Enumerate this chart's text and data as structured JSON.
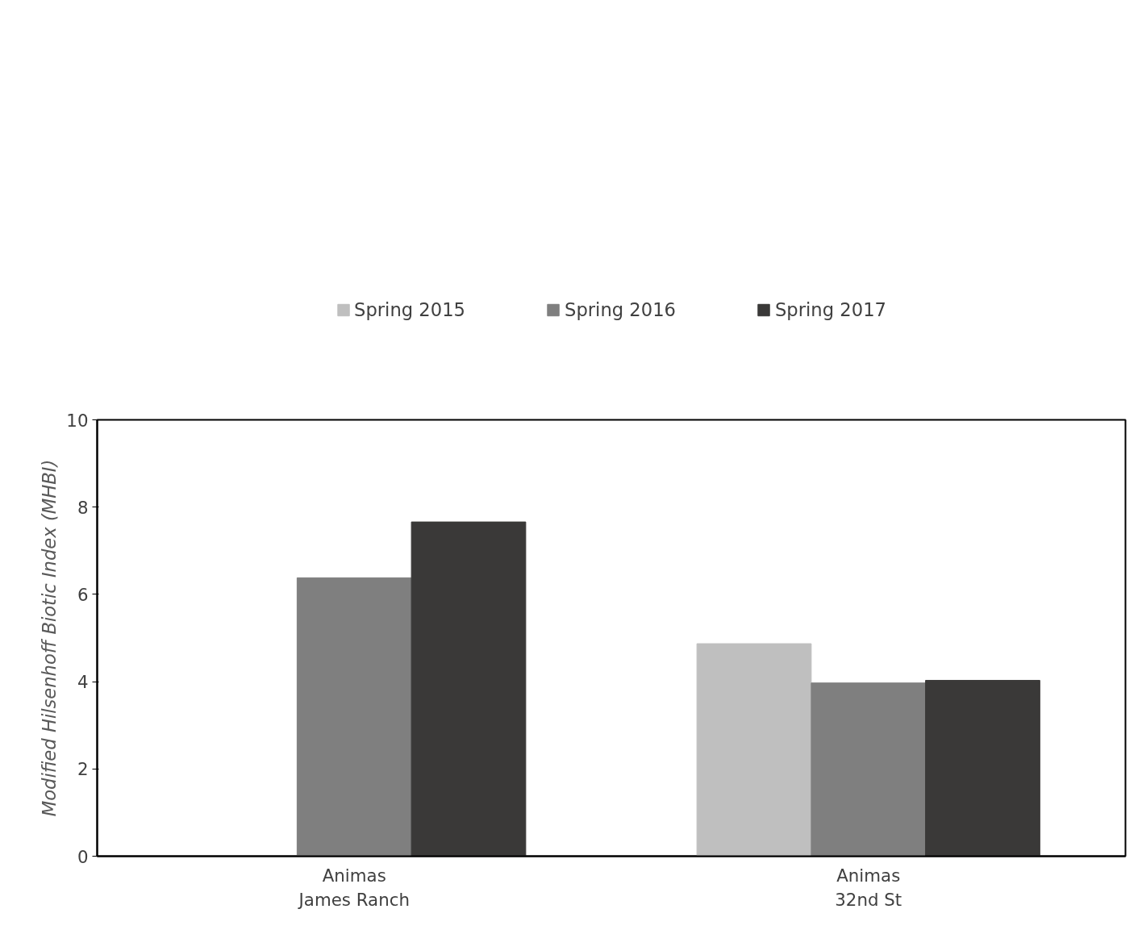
{
  "chart_data": {
    "type": "bar",
    "categories": [
      "Animas\nJames Ranch",
      "Animas\n32nd St"
    ],
    "ylabel": "Modified Hilsenhoff Biotic Index (MHBI)",
    "series": [
      {
        "name": "Spring 2015",
        "color": "#bfbfbf",
        "values": [
          null,
          4.87
        ]
      },
      {
        "name": "Spring 2016",
        "color": "#7f7f7f",
        "values": [
          6.38,
          3.97
        ]
      },
      {
        "name": "Spring 2017",
        "color": "#3a3938",
        "values": [
          7.66,
          4.03
        ]
      }
    ],
    "ylim": [
      0,
      10
    ],
    "yticks": [
      0,
      2,
      4,
      6,
      8,
      10
    ],
    "legend": "top",
    "grid": false
  }
}
